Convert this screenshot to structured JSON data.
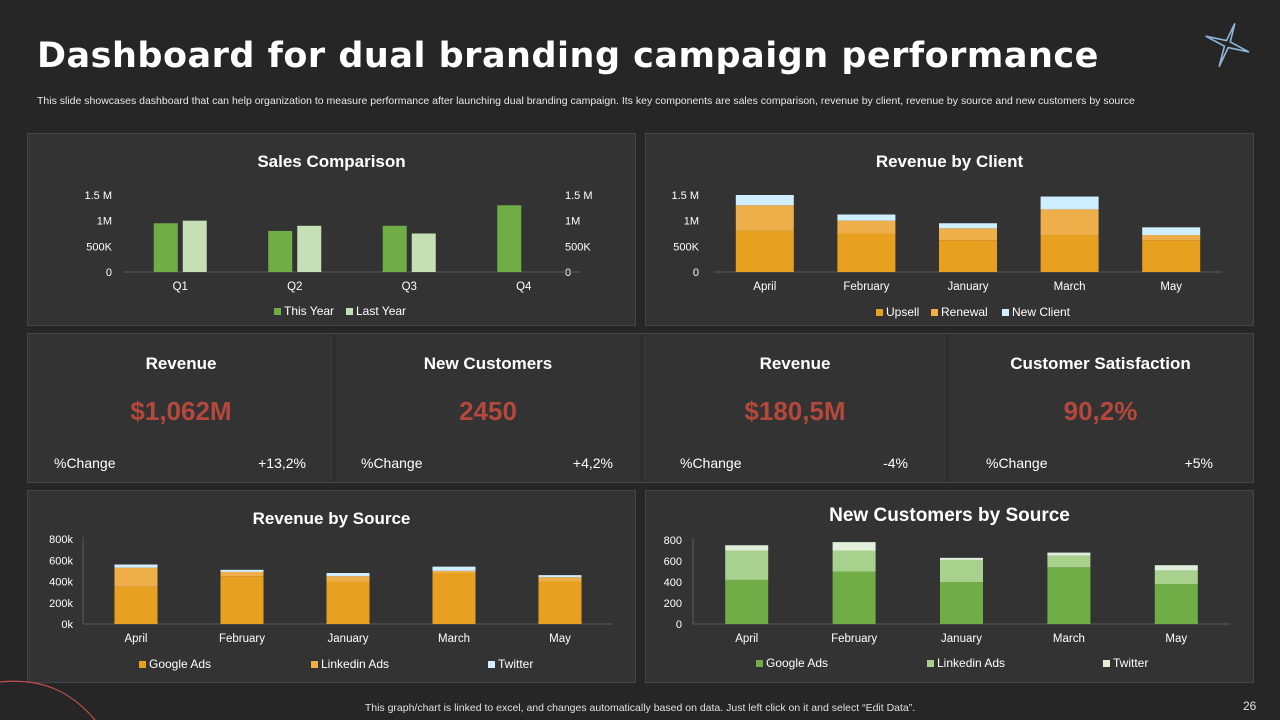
{
  "header": {
    "title": "Dashboard for dual branding campaign performance",
    "subtitle": "This slide showcases dashboard that can help organization to measure performance after launching dual branding campaign. Its key components are sales comparison, revenue by client, revenue by source and new customers by source"
  },
  "kpis": [
    {
      "title": "Revenue",
      "value": "$1,062M",
      "change_label": "%Change",
      "change": "+13,2%"
    },
    {
      "title": "New Customers",
      "value": "2450",
      "change_label": "%Change",
      "change": "+4,2%"
    },
    {
      "title": "Revenue",
      "value": "$180,5M",
      "change_label": "%Change",
      "change": "-4%"
    },
    {
      "title": "Customer Satisfaction",
      "value": "90,2%",
      "change_label": "%Change",
      "change": "+5%"
    }
  ],
  "footer": {
    "note": "This graph/chart is linked to excel,  and changes automatically based on data. Just left click on it and select “Edit Data”.",
    "page_number": "26"
  },
  "colors": {
    "accent_value": "#b5483c",
    "green": "#70ad47",
    "light_green": "#c5e0b4",
    "orange": "#e8a020",
    "orange_light": "#eeae4a",
    "light_blue": "#cfeeff",
    "pale": "#e2efda"
  },
  "chart_data": [
    {
      "id": "sales",
      "type": "bar",
      "title": "Sales Comparison",
      "categories": [
        "Q1",
        "Q2",
        "Q3",
        "Q4"
      ],
      "series": [
        {
          "name": "This Year",
          "values": [
            950000,
            800000,
            900000,
            1300000
          ],
          "color": "#70ad47"
        },
        {
          "name": "Last Year",
          "values": [
            1000000,
            900000,
            750000,
            0
          ],
          "color": "#c5e0b4"
        }
      ],
      "ylim": [
        0,
        1500000
      ],
      "yticks": [
        {
          "v": 0,
          "label": "0"
        },
        {
          "v": 500000,
          "label": "500K"
        },
        {
          "v": 1000000,
          "label": "1M"
        },
        {
          "v": 1500000,
          "label": "1.5 M"
        }
      ],
      "secondary_axis": true,
      "grid": false,
      "legend": "bottom"
    },
    {
      "id": "client",
      "type": "bar",
      "stacked": true,
      "title": "Revenue by Client",
      "categories": [
        "April",
        "February",
        "January",
        "March",
        "May"
      ],
      "series": [
        {
          "name": "Upsell",
          "values": [
            800000,
            750000,
            620000,
            720000,
            620000
          ],
          "color": "#e8a020"
        },
        {
          "name": "Renewal",
          "values": [
            500000,
            250000,
            230000,
            500000,
            100000
          ],
          "color": "#eeae4a"
        },
        {
          "name": "New Client",
          "values": [
            200000,
            120000,
            100000,
            250000,
            150000
          ],
          "color": "#cfeeff"
        }
      ],
      "ylim": [
        0,
        1500000
      ],
      "yticks": [
        {
          "v": 0,
          "label": "0"
        },
        {
          "v": 500000,
          "label": "500K"
        },
        {
          "v": 1000000,
          "label": "1M"
        },
        {
          "v": 1500000,
          "label": "1.5 M"
        }
      ],
      "grid": false,
      "legend": "bottom"
    },
    {
      "id": "rev_source",
      "type": "bar",
      "stacked": true,
      "title": "Revenue by Source",
      "categories": [
        "April",
        "February",
        "January",
        "March",
        "May"
      ],
      "series": [
        {
          "name": "Google Ads",
          "values": [
            350000,
            450000,
            400000,
            480000,
            400000
          ],
          "color": "#e8a020"
        },
        {
          "name": "Linkedin Ads",
          "values": [
            180000,
            40000,
            50000,
            20000,
            40000
          ],
          "color": "#eeae4a"
        },
        {
          "name": "Twitter",
          "values": [
            30000,
            20000,
            30000,
            40000,
            20000
          ],
          "color": "#cfeeff"
        }
      ],
      "ylim": [
        0,
        800000
      ],
      "yticks": [
        {
          "v": 0,
          "label": "0k"
        },
        {
          "v": 200000,
          "label": "200k"
        },
        {
          "v": 400000,
          "label": "400k"
        },
        {
          "v": 600000,
          "label": "600k"
        },
        {
          "v": 800000,
          "label": "800k"
        }
      ],
      "grid": false,
      "legend": "bottom"
    },
    {
      "id": "cust_source",
      "type": "bar",
      "stacked": true,
      "title": "New Customers by Source",
      "categories": [
        "April",
        "February",
        "January",
        "March",
        "May"
      ],
      "series": [
        {
          "name": "Google Ads",
          "values": [
            420,
            500,
            400,
            540,
            380
          ],
          "color": "#70ad47"
        },
        {
          "name": "Linkedin Ads",
          "values": [
            280,
            200,
            210,
            110,
            130
          ],
          "color": "#a9d18e"
        },
        {
          "name": "Twitter",
          "values": [
            50,
            80,
            20,
            30,
            50
          ],
          "color": "#e2efda"
        }
      ],
      "ylim": [
        0,
        800
      ],
      "yticks": [
        {
          "v": 0,
          "label": "0"
        },
        {
          "v": 200,
          "label": "200"
        },
        {
          "v": 400,
          "label": "400"
        },
        {
          "v": 600,
          "label": "600"
        },
        {
          "v": 800,
          "label": "800"
        }
      ],
      "grid": false,
      "legend": "bottom"
    }
  ]
}
